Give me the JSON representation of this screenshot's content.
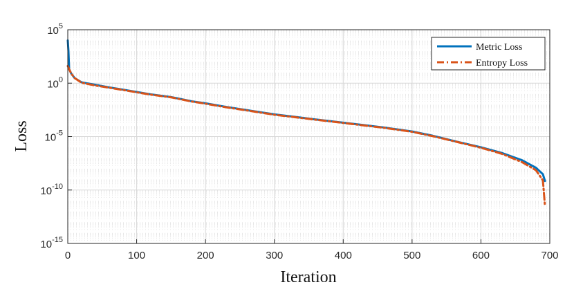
{
  "chart_data": {
    "type": "line",
    "title": "",
    "xlabel": "Iteration",
    "ylabel": "Loss",
    "xlim": [
      0,
      700
    ],
    "ylim_exponents": [
      -15,
      5
    ],
    "yscale": "log",
    "grid": true,
    "minor_grid_y": true,
    "legend_position": "top-right",
    "x_ticks": [
      0,
      100,
      200,
      300,
      400,
      500,
      600,
      700
    ],
    "y_ticks": [
      {
        "base": "10",
        "exp": "-15"
      },
      {
        "base": "10",
        "exp": "-10"
      },
      {
        "base": "10",
        "exp": "-5"
      },
      {
        "base": "10",
        "exp": "0"
      },
      {
        "base": "10",
        "exp": "5"
      }
    ],
    "y_tick_values": [
      1e-15,
      1e-10,
      1e-05,
      1,
      100000
    ],
    "series": [
      {
        "name": "Metric Loss",
        "color": "#0072BD",
        "style": "solid",
        "x": [
          0,
          1,
          2,
          5,
          10,
          20,
          40,
          60,
          80,
          100,
          120,
          150,
          180,
          200,
          230,
          260,
          300,
          330,
          360,
          400,
          430,
          460,
          500,
          530,
          560,
          600,
          630,
          660,
          680,
          690,
          693
        ],
        "y": [
          10000,
          1000,
          20,
          8,
          3,
          1.2,
          0.7,
          0.4,
          0.25,
          0.15,
          0.09,
          0.05,
          0.02,
          0.013,
          0.006,
          0.003,
          0.0012,
          0.0007,
          0.0004,
          0.0002,
          0.00012,
          7e-05,
          3e-05,
          1.2e-05,
          4e-06,
          1e-06,
          3e-07,
          6e-08,
          1.2e-08,
          3e-09,
          7e-10
        ]
      },
      {
        "name": "Entropy Loss",
        "color": "#D95319",
        "style": "dash-dot",
        "x": [
          0,
          1,
          2,
          5,
          10,
          20,
          40,
          60,
          80,
          100,
          120,
          150,
          180,
          200,
          230,
          260,
          300,
          330,
          360,
          400,
          430,
          460,
          500,
          530,
          560,
          600,
          630,
          660,
          680,
          690,
          693
        ],
        "y": [
          40,
          30,
          20,
          8,
          3,
          1.1,
          0.6,
          0.38,
          0.23,
          0.14,
          0.085,
          0.047,
          0.019,
          0.012,
          0.0055,
          0.0028,
          0.0011,
          0.00065,
          0.00038,
          0.00019,
          0.00011,
          6.5e-05,
          2.8e-05,
          1.1e-05,
          3.8e-06,
          9e-07,
          2.5e-07,
          4e-08,
          7e-09,
          8e-10,
          3e-12
        ]
      }
    ]
  }
}
